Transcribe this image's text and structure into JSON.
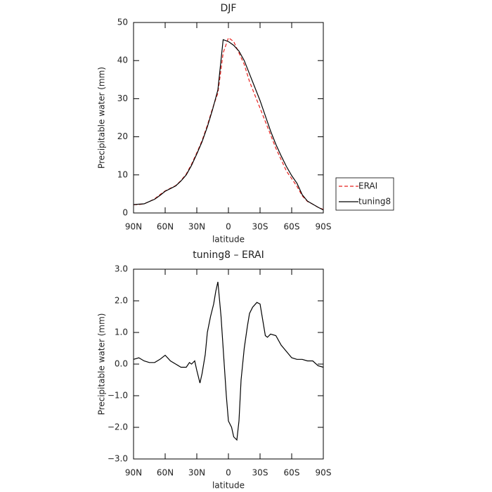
{
  "chart_data": [
    {
      "type": "line",
      "title": "DJF",
      "x_label": "latitude",
      "y_label": "Precipitable water (mm)",
      "x": [
        90,
        85,
        80,
        75,
        70,
        65,
        60,
        55,
        50,
        45,
        40,
        35,
        30,
        25,
        20,
        15,
        10,
        5,
        0,
        -5,
        -10,
        -15,
        -20,
        -25,
        -30,
        -35,
        -40,
        -45,
        -50,
        -55,
        -60,
        -65,
        -70,
        -75,
        -80,
        -85,
        -90
      ],
      "series": [
        {
          "name": "ERAI",
          "color": "#e8211d",
          "style": "dashed",
          "values": [
            2.2,
            2.2,
            2.4,
            3,
            3.7,
            4.8,
            5.8,
            6.5,
            7.2,
            8.5,
            10.2,
            12.8,
            15.8,
            19,
            23,
            27.5,
            31.5,
            42,
            46,
            45,
            42,
            39,
            34.5,
            31,
            27.5,
            24,
            20.5,
            17,
            14,
            11,
            9,
            7,
            4.5,
            3,
            2.3,
            1.5,
            0.9
          ]
        },
        {
          "name": "tuning8",
          "color": "#000000",
          "style": "solid",
          "values": [
            2.2,
            2.3,
            2.4,
            3,
            3.6,
            4.6,
            5.7,
            6.4,
            7.1,
            8.4,
            10,
            12.5,
            15.5,
            18.7,
            22.6,
            27.2,
            32.3,
            45.5,
            45,
            44,
            42.5,
            40,
            36.5,
            33,
            29.5,
            25.5,
            21.5,
            18,
            15,
            12.2,
            9.8,
            7.8,
            4.8,
            3.1,
            2.3,
            1.5,
            0.8
          ]
        }
      ],
      "xlim": [
        90,
        -90
      ],
      "xticks": [
        {
          "value": 90,
          "label": "90N"
        },
        {
          "value": 60,
          "label": "60N"
        },
        {
          "value": 30,
          "label": "30N"
        },
        0,
        {
          "value": -30,
          "label": "30S"
        },
        {
          "value": -60,
          "label": "60S"
        },
        {
          "value": -90,
          "label": "90S"
        }
      ],
      "ylim": [
        0,
        50
      ],
      "yticks": [
        0,
        10,
        20,
        30,
        40,
        50
      ],
      "legend": "right"
    },
    {
      "type": "line",
      "title": "tuning8 – ERAI",
      "x_label": "latitude",
      "y_label": "Precipitable water (mm)",
      "x": [
        90,
        85,
        80,
        75,
        70,
        65,
        60,
        55,
        50,
        45,
        40,
        37,
        35,
        32,
        30,
        27,
        25,
        22,
        20,
        17,
        14,
        12,
        10,
        7,
        5,
        2,
        0,
        -3,
        -5,
        -8,
        -10,
        -12,
        -15,
        -18,
        -20,
        -23,
        -27,
        -30,
        -33,
        -35,
        -37,
        -40,
        -45,
        -50,
        -55,
        -60,
        -65,
        -70,
        -75,
        -80,
        -85,
        -90
      ],
      "series": [
        {
          "name": "tuning8 – ERAI",
          "color": "#000000",
          "style": "solid",
          "values": [
            0.15,
            0.2,
            0.1,
            0.05,
            0.05,
            0.15,
            0.28,
            0.1,
            0,
            -0.1,
            -0.1,
            0.05,
            0,
            0.1,
            -0.2,
            -0.6,
            -0.3,
            0.3,
            1,
            1.5,
            1.9,
            2.3,
            2.6,
            1.5,
            0.5,
            -1,
            -1.8,
            -2,
            -2.3,
            -2.4,
            -1.8,
            -0.5,
            0.5,
            1.2,
            1.6,
            1.8,
            1.95,
            1.9,
            1.3,
            0.9,
            0.85,
            0.95,
            0.9,
            0.6,
            0.4,
            0.2,
            0.15,
            0.15,
            0.1,
            0.1,
            -0.05,
            -0.1
          ]
        }
      ],
      "xlim": [
        90,
        -90
      ],
      "xticks": [
        {
          "value": 90,
          "label": "90N"
        },
        {
          "value": 60,
          "label": "60N"
        },
        {
          "value": 30,
          "label": "30N"
        },
        0,
        {
          "value": -30,
          "label": "30S"
        },
        {
          "value": -60,
          "label": "60S"
        },
        {
          "value": -90,
          "label": "90S"
        }
      ],
      "ylim": [
        -3,
        3
      ],
      "yticks": [
        {
          "value": -3,
          "label": "−3.0"
        },
        {
          "value": -2,
          "label": "−2.0"
        },
        {
          "value": -1,
          "label": "−1.0"
        },
        {
          "value": 0,
          "label": "0.0"
        },
        {
          "value": 1,
          "label": "1.0"
        },
        {
          "value": 2,
          "label": "2.0"
        },
        {
          "value": 3,
          "label": "3.0"
        }
      ]
    }
  ]
}
